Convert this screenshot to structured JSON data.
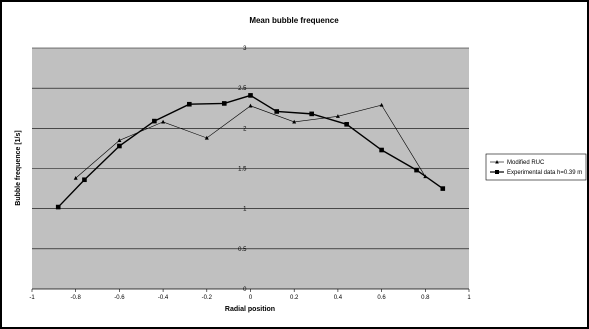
{
  "chart_data": {
    "type": "line",
    "title": "Mean bubble frequence",
    "xlabel": "Radial position",
    "ylabel": "Bubble frequence [1/s]",
    "xlim": [
      -1,
      1
    ],
    "ylim": [
      0,
      3
    ],
    "x_ticks": [
      -1,
      -0.8,
      -0.6,
      -0.4,
      -0.2,
      0,
      0.2,
      0.4,
      0.6,
      0.8,
      1
    ],
    "x_tick_labels": [
      "-1",
      "-0.8",
      "-0.6",
      "-0.4",
      "-0.2",
      "0",
      "0.2",
      "0.4",
      "0.6",
      "0.8",
      "1"
    ],
    "y_ticks": [
      0,
      0.5,
      1,
      1.5,
      2,
      2.5,
      3
    ],
    "y_tick_labels": [
      "0",
      "0.5",
      "1",
      "1.5",
      "2",
      "2.5",
      "3"
    ],
    "grid": "horizontal",
    "legend_position": "right",
    "series": [
      {
        "name": "Modified RUC",
        "marker": "triangle",
        "color": "#000000",
        "x": [
          -0.8,
          -0.6,
          -0.4,
          -0.2,
          0,
          0.2,
          0.4,
          0.6,
          0.8
        ],
        "y": [
          1.38,
          1.85,
          2.08,
          1.88,
          2.28,
          2.08,
          2.15,
          2.29,
          1.4
        ]
      },
      {
        "name": "Experimental data h=0.39 m",
        "marker": "square",
        "color": "#000000",
        "x": [
          -0.88,
          -0.76,
          -0.6,
          -0.44,
          -0.28,
          -0.12,
          0,
          0.12,
          0.28,
          0.44,
          0.6,
          0.76,
          0.88
        ],
        "y": [
          1.02,
          1.36,
          1.78,
          2.09,
          2.3,
          2.31,
          2.41,
          2.21,
          2.18,
          2.05,
          1.73,
          1.48,
          1.25
        ]
      }
    ]
  }
}
